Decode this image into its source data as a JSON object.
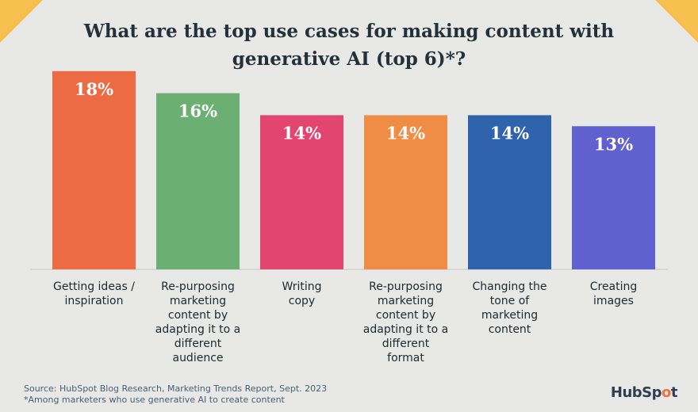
{
  "title_lines": [
    "What are the top use cases for making content with",
    "generative AI (top 6)*?"
  ],
  "colors": {
    "background": "#e8e8e6",
    "accent": "#f5c04d"
  },
  "chart_data": {
    "type": "bar",
    "title": "What are the top use cases for making content with generative AI (top 6)*?",
    "value_suffix": "%",
    "ylim": [
      0,
      20
    ],
    "grid": false,
    "legend": "none",
    "categories": [
      [
        "Getting ideas /",
        "inspiration"
      ],
      [
        "Re-purposing",
        "marketing",
        "content by",
        "adapting it to a",
        "different",
        "audience"
      ],
      [
        "Writing",
        "copy"
      ],
      [
        "Re-purposing",
        "marketing",
        "content by",
        "adapting it to a",
        "different",
        "format"
      ],
      [
        "Changing the",
        "tone of",
        "marketing",
        "content"
      ],
      [
        "Creating",
        "images"
      ]
    ],
    "values": [
      18,
      16,
      14,
      14,
      14,
      13
    ],
    "labels": [
      "18%",
      "16%",
      "14%",
      "14%",
      "14%",
      "13%"
    ],
    "bar_colors": [
      "#ec6a44",
      "#6baf72",
      "#e2456f",
      "#ef8d46",
      "#2f63ab",
      "#6060cf"
    ]
  },
  "footer": {
    "source": "Source: HubSpot Blog Research, Marketing Trends Report, Sept. 2023",
    "note": "*Among marketers who use generative AI to create content"
  },
  "brand": {
    "name_part1": "HubSp",
    "name_dot": "o",
    "name_part2": "t"
  }
}
